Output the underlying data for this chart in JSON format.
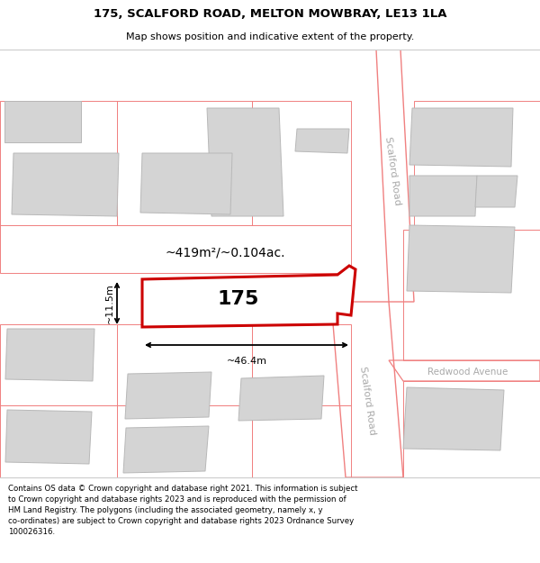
{
  "title_line1": "175, SCALFORD ROAD, MELTON MOWBRAY, LE13 1LA",
  "title_line2": "Map shows position and indicative extent of the property.",
  "footer_text": "Contains OS data © Crown copyright and database right 2021. This information is subject\nto Crown copyright and database rights 2023 and is reproduced with the permission of\nHM Land Registry. The polygons (including the associated geometry, namely x, y\nco-ordinates) are subject to Crown copyright and database rights 2023 Ordnance Survey\n100026316.",
  "area_label": "~419m²/~0.104ac.",
  "width_label": "~46.4m",
  "height_label": "~11.5m",
  "property_number": "175",
  "building_fill": "#d4d4d4",
  "road_outline": "#f08080",
  "highlight_color": "#cc0000",
  "road_label_color": "#aaaaaa",
  "scalford_road_label": "Scalford Road",
  "redwood_avenue_label": "Redwood Avenue",
  "title_fontsize": 9.5,
  "subtitle_fontsize": 8.0,
  "footer_fontsize": 6.2,
  "area_fontsize": 10.0,
  "propnum_fontsize": 16.0,
  "dim_fontsize": 8.0,
  "road_label_fontsize": 8.0
}
